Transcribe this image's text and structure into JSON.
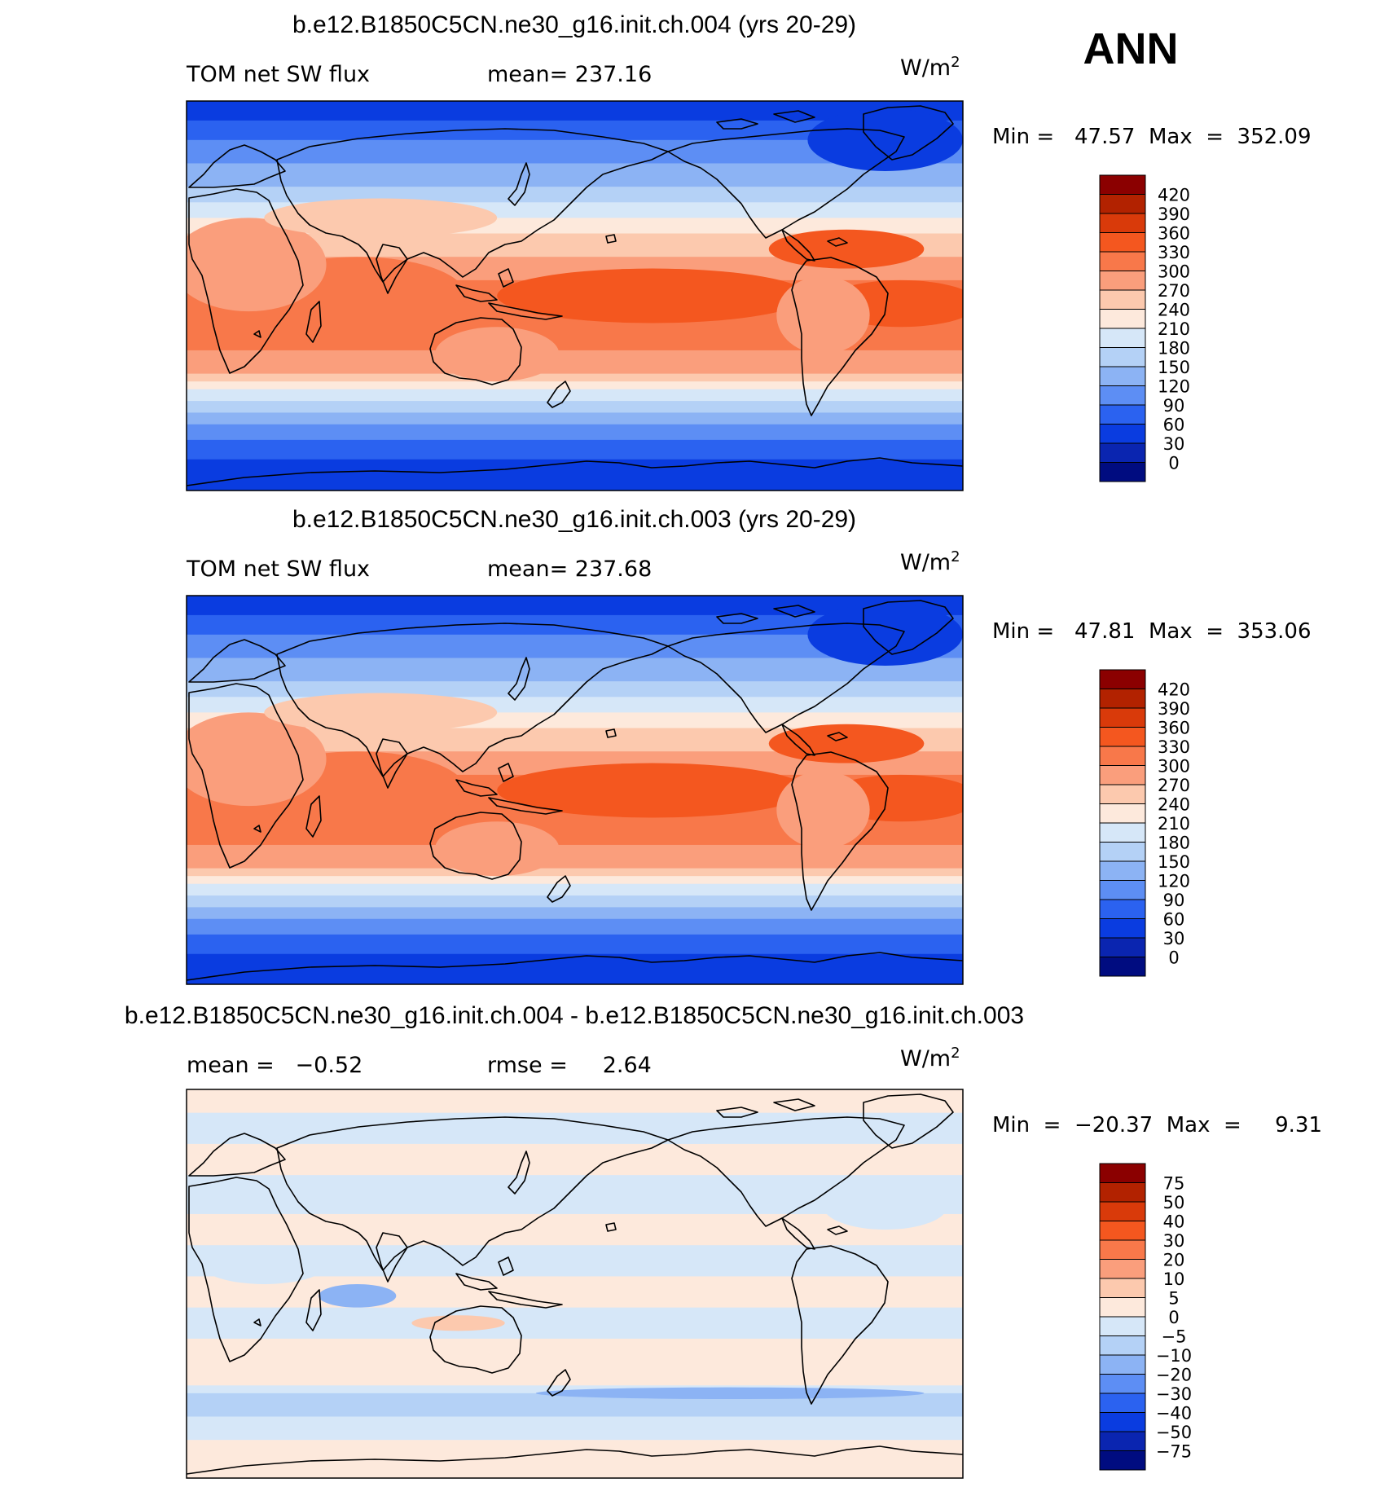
{
  "season": "ANN",
  "units": "W/m",
  "units_sup": "2",
  "chart_data": [
    {
      "type": "heatmap",
      "title": "b.e12.B1850C5CN.ne30_g16.init.ch.004 (yrs 20-29)",
      "variable": "TOM net SW flux",
      "stat_left": "TOM net SW flux",
      "stat_mid": "mean= 237.16",
      "minmax": "Min =   47.57  Max  =  352.09",
      "min": 47.57,
      "max": 352.09,
      "mean": 237.16,
      "levels": [
        "420",
        "390",
        "360",
        "330",
        "300",
        "270",
        "240",
        "210",
        "180",
        "150",
        "120",
        "90",
        "60",
        "30",
        "0"
      ],
      "colors": [
        "#8b0000",
        "#b22200",
        "#d93a0a",
        "#f4571f",
        "#f8784a",
        "#fa9e7c",
        "#fcc9ae",
        "#fde9dc",
        "#d6e7f8",
        "#b4d1f6",
        "#8cb3f4",
        "#5d8ef4",
        "#2b62f0",
        "#0a3ce0",
        "#0a25b0",
        "#000c80"
      ],
      "map": "sw"
    },
    {
      "type": "heatmap",
      "title": "b.e12.B1850C5CN.ne30_g16.init.ch.003 (yrs 20-29)",
      "variable": "TOM net SW flux",
      "stat_left": "TOM net SW flux",
      "stat_mid": "mean= 237.68",
      "minmax": "Min =   47.81  Max  =  353.06",
      "min": 47.81,
      "max": 353.06,
      "mean": 237.68,
      "levels": [
        "420",
        "390",
        "360",
        "330",
        "300",
        "270",
        "240",
        "210",
        "180",
        "150",
        "120",
        "90",
        "60",
        "30",
        "0"
      ],
      "colors": [
        "#8b0000",
        "#b22200",
        "#d93a0a",
        "#f4571f",
        "#f8784a",
        "#fa9e7c",
        "#fcc9ae",
        "#fde9dc",
        "#d6e7f8",
        "#b4d1f6",
        "#8cb3f4",
        "#5d8ef4",
        "#2b62f0",
        "#0a3ce0",
        "#0a25b0",
        "#000c80"
      ],
      "map": "sw"
    },
    {
      "type": "heatmap",
      "title": "b.e12.B1850C5CN.ne30_g16.init.ch.004 - b.e12.B1850C5CN.ne30_g16.init.ch.003",
      "stat_left": "mean =   −0.52",
      "stat_mid": "rmse =     2.64",
      "minmax": "Min  =  −20.37  Max  =     9.31",
      "min": -20.37,
      "max": 9.31,
      "mean": -0.52,
      "rmse": 2.64,
      "levels": [
        "75",
        "50",
        "40",
        "30",
        "20",
        "10",
        "5",
        "0",
        "−5",
        "−10",
        "−20",
        "−30",
        "−40",
        "−50",
        "−75"
      ],
      "colors": [
        "#8b0000",
        "#b22200",
        "#d93a0a",
        "#f4571f",
        "#f8784a",
        "#fa9e7c",
        "#fcc9ae",
        "#fde9dc",
        "#d6e7f8",
        "#b4d1f6",
        "#8cb3f4",
        "#5d8ef4",
        "#2b62f0",
        "#0a3ce0",
        "#0a25b0",
        "#000c80"
      ],
      "map": "diff"
    }
  ]
}
